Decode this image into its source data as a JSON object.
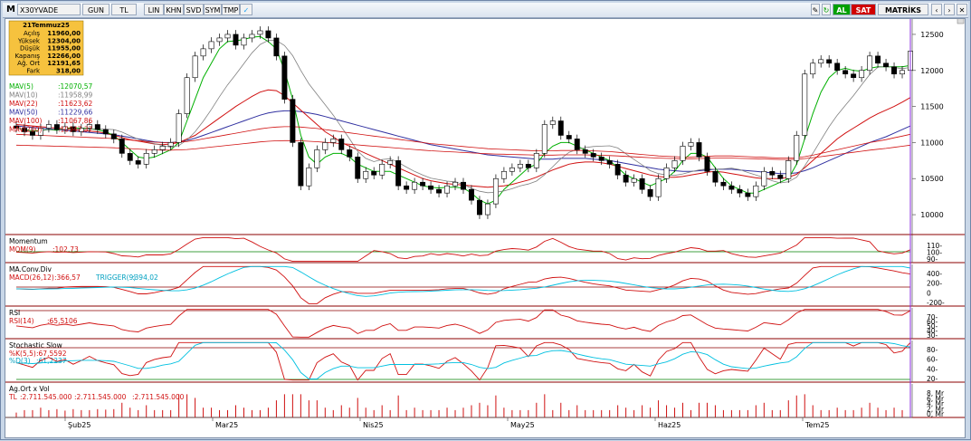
{
  "toolbar": {
    "logo": "M",
    "symbol": "X30YVADE",
    "period": "GUN",
    "currency": "TL",
    "buttons": [
      "LIN",
      "KHN",
      "SVD",
      "SYM",
      "TMP"
    ],
    "right": {
      "al": "AL",
      "sat": "SAT",
      "matriks": "MATRİKS"
    }
  },
  "info_box": {
    "date": "21Temmuz25",
    "rows": [
      {
        "label": "Açılış",
        "value": "11960,00"
      },
      {
        "label": "Yüksek",
        "value": "12304,00"
      },
      {
        "label": "Düşük",
        "value": "11955,00"
      },
      {
        "label": "Kapanış",
        "value": "12266,00"
      },
      {
        "label": "Ağ. Ort",
        "value": "12191,65"
      },
      {
        "label": "Fark",
        "value": "318,00"
      }
    ]
  },
  "moving_averages": [
    {
      "label": "MAV(5)",
      "value": ":12070,57",
      "color": "#00b000"
    },
    {
      "label": "MAV(10)",
      "value": ":11958,99",
      "color": "#808080"
    },
    {
      "label": "MAV(22)",
      "value": ":11623,62",
      "color": "#d01010"
    },
    {
      "label": "MAV(50)",
      "value": ":11229,66",
      "color": "#3030a0"
    },
    {
      "label": "MAV(100)",
      "value": ":11067,86",
      "color": "#d01010"
    },
    {
      "label": "MAV(200)",
      "value": ":10947,37",
      "color": "#d01010"
    }
  ],
  "panels": {
    "momentum": {
      "title": "Momentum",
      "label": "MOM(9)",
      "value": ":102,73",
      "ticks": [
        "110-",
        "100-",
        "90-"
      ]
    },
    "macd": {
      "title": "MA.Conv.Div",
      "label": "MACD(26,12)",
      "value": ":366,57",
      "trigger_label": "TRIGGER(9)",
      "trigger_value": ":394,02",
      "ticks": [
        "400-",
        "200-",
        "0",
        "-200-"
      ]
    },
    "rsi": {
      "title": "RSI",
      "label": "RSI(14)",
      "value": ":65,5106",
      "ticks": [
        "70-",
        "60-",
        "50-",
        "40-",
        "30-"
      ]
    },
    "stoch": {
      "title": "Stochastic Slow",
      "k_label": "%K(5,5)",
      "k_value": ":67,5592",
      "d_label": "%D(3)",
      "d_value": ":61,2237",
      "ticks": [
        "80-",
        "60-",
        "40-",
        "20-"
      ]
    },
    "volume": {
      "title": "Ag.Ort x Vol",
      "label": "TL",
      "values": [
        ":2.711.545.000",
        ":2.711.545.000",
        ":2.711.545.000"
      ],
      "ticks": [
        "8, Mr",
        "6, Mr",
        "4, Mr",
        "2, Mr",
        "0, Mr"
      ]
    }
  },
  "x_axis_labels": [
    "Şub25",
    "Mar25",
    "Nis25",
    "May25",
    "Haz25",
    "Tem25"
  ],
  "chart_data": {
    "type": "candlestick",
    "y_ticks": [
      12500,
      12000,
      11500,
      11000,
      10500,
      10000
    ],
    "ylim": [
      9800,
      12650
    ],
    "close": [
      11200,
      11150,
      11100,
      11200,
      11250,
      11180,
      11220,
      11150,
      11200,
      11250,
      11180,
      11120,
      11050,
      10850,
      10750,
      10700,
      10850,
      10900,
      10950,
      11000,
      11400,
      11900,
      12200,
      12300,
      12400,
      12450,
      12500,
      12350,
      12450,
      12500,
      12550,
      12450,
      12200,
      11600,
      11000,
      10400,
      10650,
      10900,
      11000,
      11050,
      10900,
      10800,
      10500,
      10600,
      10550,
      10700,
      10750,
      10400,
      10350,
      10450,
      10400,
      10350,
      10300,
      10400,
      10450,
      10350,
      10200,
      10000,
      10150,
      10500,
      10600,
      10650,
      10700,
      10650,
      10850,
      11250,
      11300,
      11100,
      11050,
      10900,
      10850,
      10800,
      10750,
      10700,
      10550,
      10450,
      10500,
      10350,
      10250,
      10500,
      10650,
      10750,
      10950,
      11000,
      10800,
      10600,
      10450,
      10400,
      10350,
      10300,
      10250,
      10400,
      10600,
      10550,
      10500,
      10750,
      11100,
      11950,
      12100,
      12150,
      12100,
      12000,
      11950,
      11900,
      12000,
      12200,
      12100,
      12050,
      11950,
      12000,
      12266
    ],
    "ma5": [
      11200,
      11180,
      11160,
      11170,
      11180,
      11170,
      11200,
      11200,
      11200,
      11190,
      11180,
      11150,
      11100,
      11000,
      10900,
      10800,
      10780,
      10800,
      10850,
      10900,
      11000,
      11300,
      11600,
      11900,
      12100,
      12300,
      12400,
      12410,
      12430,
      12460,
      12470,
      12400,
      12300,
      12000,
      11600,
      11100,
      10800,
      10700,
      10800,
      10850,
      10850,
      10800,
      10700,
      10650,
      10600,
      10600,
      10600,
      10550,
      10500,
      10450,
      10400,
      10380,
      10370,
      10380,
      10380,
      10370,
      10300,
      10200,
      10150,
      10200,
      10350,
      10450,
      10550,
      10650,
      10700,
      10850,
      10950,
      11000,
      11000,
      10950,
      10900,
      10850,
      10800,
      10750,
      10650,
      10550,
      10500,
      10450,
      10400,
      10450,
      10500,
      10600,
      10750,
      10850,
      10850,
      10800,
      10650,
      10500,
      10400,
      10350,
      10300,
      10300,
      10350,
      10400,
      10450,
      10500,
      10700,
      11050,
      11400,
      11700,
      11900,
      12000,
      12030,
      12000,
      11990,
      12030,
      12050,
      12050,
      12050,
      12050,
      12070
    ],
    "ma22": [
      11250,
      11240,
      11230,
      11220,
      11210,
      11200,
      11190,
      11180,
      11170,
      11160,
      11150,
      11130,
      11100,
      11070,
      11040,
      11020,
      11000,
      10980,
      10970,
      10980,
      11000,
      11050,
      11100,
      11180,
      11260,
      11340,
      11420,
      11500,
      11570,
      11640,
      11700,
      11730,
      11720,
      11650,
      11550,
      11450,
      11350,
      11250,
      11150,
      11080,
      11000,
      10950,
      10900,
      10850,
      10800,
      10750,
      10700,
      10650,
      10600,
      10550,
      10500,
      10470,
      10450,
      10430,
      10420,
      10410,
      10400,
      10390,
      10380,
      10390,
      10400,
      10420,
      10450,
      10480,
      10520,
      10570,
      10620,
      10660,
      10700,
      10720,
      10730,
      10730,
      10720,
      10700,
      10670,
      10640,
      10610,
      10580,
      10550,
      10530,
      10520,
      10520,
      10530,
      10550,
      10570,
      10590,
      10600,
      10590,
      10570,
      10550,
      10530,
      10510,
      10500,
      10500,
      10500,
      10520,
      10560,
      10650,
      10750,
      10850,
      10950,
      11050,
      11130,
      11200,
      11270,
      11340,
      11400,
      11450,
      11500,
      11560,
      11624
    ],
    "ma50": [
      11230,
      11220,
      11210,
      11200,
      11190,
      11180,
      11170,
      11160,
      11150,
      11140,
      11130,
      11120,
      11110,
      11090,
      11070,
      11050,
      11030,
      11010,
      11000,
      11000,
      11010,
      11030,
      11060,
      11100,
      11140,
      11180,
      11220,
      11260,
      11300,
      11340,
      11380,
      11410,
      11430,
      11440,
      11440,
      11430,
      11410,
      11390,
      11360,
      11330,
      11300,
      11270,
      11240,
      11210,
      11180,
      11150,
      11120,
      11090,
      11060,
      11030,
      11000,
      10970,
      10950,
      10930,
      10910,
      10890,
      10870,
      10850,
      10830,
      10820,
      10810,
      10800,
      10790,
      10780,
      10770,
      10770,
      10770,
      10780,
      10780,
      10780,
      10780,
      10770,
      10760,
      10750,
      10730,
      10710,
      10690,
      10670,
      10650,
      10630,
      10620,
      10610,
      10600,
      10600,
      10610,
      10620,
      10630,
      10630,
      10630,
      10620,
      10610,
      10600,
      10590,
      10580,
      10570,
      10570,
      10580,
      10610,
      10650,
      10700,
      10750,
      10800,
      10850,
      10900,
      10950,
      11000,
      11040,
      11080,
      11130,
      11180,
      11230
    ],
    "volume_scale": "Mr"
  },
  "colors": {
    "up": "#ffffff",
    "down": "#000000",
    "mav5": "#00b000",
    "mav10": "#808080",
    "mav22": "#d01010",
    "mav50": "#3030a0",
    "signal": "#00c0e0",
    "panel_border": "#8b0000",
    "cursor": "#8a2be2"
  }
}
